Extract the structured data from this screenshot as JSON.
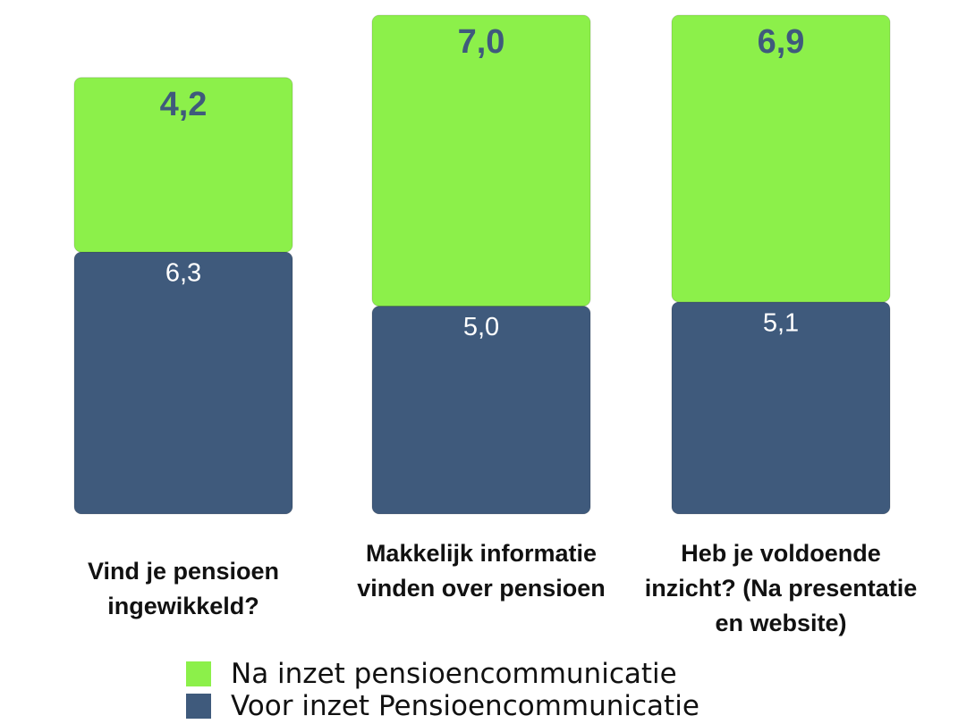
{
  "chart_data": {
    "type": "stacked_bar",
    "categories": [
      "Vind je pensioen ingewikkeld?",
      "Makkelijk informatie vinden over pensioen",
      "Heb je voldoende inzicht? (Na presentatie en website)"
    ],
    "series": [
      {
        "name": "Voor inzet Pensioencommunicatie",
        "color": "#3f5a7c",
        "values": [
          6.3,
          5.0,
          5.1
        ],
        "value_labels": [
          "6,3",
          "5,0",
          "5,1"
        ]
      },
      {
        "name": "Na inzet pensioencommunicatie",
        "color": "#8cf04a",
        "values": [
          4.2,
          7.0,
          6.9
        ],
        "value_labels": [
          "4,2",
          "7,0",
          "6,9"
        ]
      }
    ],
    "ylim": [
      0,
      12.15
    ]
  }
}
